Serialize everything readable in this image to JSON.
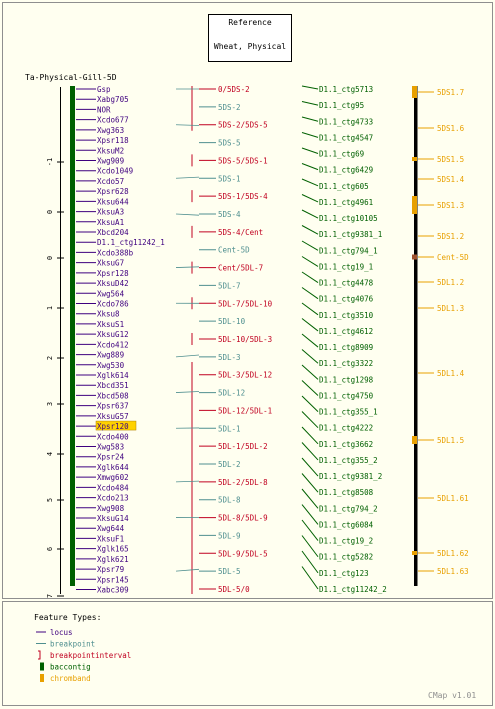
{
  "header": {
    "line1": "Reference",
    "line2": "Wheat, Physical"
  },
  "map_title": "Ta-Physical-Gill-5D",
  "colors": {
    "background": "#FFFFF0",
    "frame": "#8F8F8F",
    "locus": "#3F007F",
    "breakpoint": "#4F8F8F",
    "interval": "#C00020",
    "baccontig": "#006000",
    "chromband": "#E8A000",
    "black": "#000000",
    "highlight_bg": "#FFD200"
  },
  "axis_ticks": [
    "-1",
    "0",
    "0",
    "1",
    "2",
    "3",
    "4",
    "5",
    "6",
    "7"
  ],
  "loci": [
    {
      "label": "Gsp",
      "hl": false
    },
    {
      "label": "Xabg705",
      "hl": false
    },
    {
      "label": "NOR",
      "hl": false
    },
    {
      "label": "Xcdo677",
      "hl": false
    },
    {
      "label": "Xwg363",
      "hl": false
    },
    {
      "label": "Xpsr118",
      "hl": false
    },
    {
      "label": "XksuM2",
      "hl": false
    },
    {
      "label": "Xwg909",
      "hl": false
    },
    {
      "label": "Xcdo1049",
      "hl": false
    },
    {
      "label": "Xcdo57",
      "hl": false
    },
    {
      "label": "Xpsr628",
      "hl": false
    },
    {
      "label": "Xksu644",
      "hl": false
    },
    {
      "label": "XksuA3",
      "hl": false
    },
    {
      "label": "XksuA1",
      "hl": false
    },
    {
      "label": "Xbcd204",
      "hl": false
    },
    {
      "label": "D1.1_ctg11242_1",
      "hl": false
    },
    {
      "label": "Xcdo388b",
      "hl": false
    },
    {
      "label": "XksuG7",
      "hl": false
    },
    {
      "label": "Xpsr128",
      "hl": false
    },
    {
      "label": "XksuD42",
      "hl": false
    },
    {
      "label": "Xwg564",
      "hl": false
    },
    {
      "label": "Xcdo786",
      "hl": false
    },
    {
      "label": "Xksu8",
      "hl": false
    },
    {
      "label": "XksuS1",
      "hl": false
    },
    {
      "label": "XksuG12",
      "hl": false
    },
    {
      "label": "Xcdo412",
      "hl": false
    },
    {
      "label": "Xwg889",
      "hl": false
    },
    {
      "label": "Xwg530",
      "hl": false
    },
    {
      "label": "Xglk614",
      "hl": false
    },
    {
      "label": "Xbcd351",
      "hl": false
    },
    {
      "label": "Xbcd508",
      "hl": false
    },
    {
      "label": "Xpsr637",
      "hl": false
    },
    {
      "label": "XksuG57",
      "hl": false
    },
    {
      "label": "Xpsr120",
      "hl": true
    },
    {
      "label": "Xcdo400",
      "hl": false
    },
    {
      "label": "Xwg583",
      "hl": false
    },
    {
      "label": "Xpsr24",
      "hl": false
    },
    {
      "label": "Xglk644",
      "hl": false
    },
    {
      "label": "Xmwg602",
      "hl": false
    },
    {
      "label": "Xcdo484",
      "hl": false
    },
    {
      "label": "Xcdo213",
      "hl": false
    },
    {
      "label": "Xwg908",
      "hl": false
    },
    {
      "label": "XksuG14",
      "hl": false
    },
    {
      "label": "Xwg644",
      "hl": false
    },
    {
      "label": "XksuF1",
      "hl": false
    },
    {
      "label": "Xglk165",
      "hl": false
    },
    {
      "label": "Xglk621",
      "hl": false
    },
    {
      "label": "Xpsr79",
      "hl": false
    },
    {
      "label": "Xpsr145",
      "hl": false
    },
    {
      "label": "Xabc309",
      "hl": false
    }
  ],
  "intervals": [
    {
      "label": "0/5DS-2",
      "kind": "interval"
    },
    {
      "label": "5DS-2",
      "kind": "breakpoint"
    },
    {
      "label": "5DS-2/5DS-5",
      "kind": "interval"
    },
    {
      "label": "5DS-5",
      "kind": "breakpoint"
    },
    {
      "label": "5DS-5/5DS-1",
      "kind": "interval"
    },
    {
      "label": "5DS-1",
      "kind": "breakpoint"
    },
    {
      "label": "5DS-1/5DS-4",
      "kind": "interval"
    },
    {
      "label": "5DS-4",
      "kind": "breakpoint"
    },
    {
      "label": "5DS-4/Cent",
      "kind": "interval"
    },
    {
      "label": "Cent-5D",
      "kind": "breakpoint"
    },
    {
      "label": "Cent/5DL-7",
      "kind": "interval"
    },
    {
      "label": "5DL-7",
      "kind": "breakpoint"
    },
    {
      "label": "5DL-7/5DL-10",
      "kind": "interval"
    },
    {
      "label": "5DL-10",
      "kind": "breakpoint"
    },
    {
      "label": "5DL-10/5DL-3",
      "kind": "interval"
    },
    {
      "label": "5DL-3",
      "kind": "breakpoint"
    },
    {
      "label": "5DL-3/5DL-12",
      "kind": "interval"
    },
    {
      "label": "5DL-12",
      "kind": "breakpoint"
    },
    {
      "label": "5DL-12/5DL-1",
      "kind": "interval"
    },
    {
      "label": "5DL-1",
      "kind": "breakpoint"
    },
    {
      "label": "5DL-1/5DL-2",
      "kind": "interval"
    },
    {
      "label": "5DL-2",
      "kind": "breakpoint"
    },
    {
      "label": "5DL-2/5DL-8",
      "kind": "interval"
    },
    {
      "label": "5DL-8",
      "kind": "breakpoint"
    },
    {
      "label": "5DL-8/5DL-9",
      "kind": "interval"
    },
    {
      "label": "5DL-9",
      "kind": "breakpoint"
    },
    {
      "label": "5DL-9/5DL-5",
      "kind": "interval"
    },
    {
      "label": "5DL-5",
      "kind": "breakpoint"
    },
    {
      "label": "5DL-5/0",
      "kind": "interval"
    }
  ],
  "contigs": [
    "D1.1_ctg5713",
    "D1.1_ctg95",
    "D1.1_ctg4733",
    "D1.1_ctg4547",
    "D1.1_ctg69",
    "D1.1_ctg6429",
    "D1.1_ctg605",
    "D1.1_ctg4961",
    "D1.1_ctg10105",
    "D1.1_ctg9381_1",
    "D1.1_ctg794_1",
    "D1.1_ctg19_1",
    "D1.1_ctg4478",
    "D1.1_ctg4076",
    "D1.1_ctg3510",
    "D1.1_ctg4612",
    "D1.1_ctg8909",
    "D1.1_ctg3322",
    "D1.1_ctg1298",
    "D1.1_ctg4750",
    "D1.1_ctg355_1",
    "D1.1_ctg4222",
    "D1.1_ctg3662",
    "D1.1_ctg355_2",
    "D1.1_ctg9381_2",
    "D1.1_ctg8508",
    "D1.1_ctg794_2",
    "D1.1_ctg6084",
    "D1.1_ctg19_2",
    "D1.1_ctg5282",
    "D1.1_ctg123",
    "D1.1_ctg11242_2"
  ],
  "bands": [
    {
      "label": "5DS1.7"
    },
    {
      "label": "5DS1.6"
    },
    {
      "label": "5DS1.5"
    },
    {
      "label": "5DS1.4"
    },
    {
      "label": "5DS1.3"
    },
    {
      "label": "5DS1.2"
    },
    {
      "label": "Cent-5D"
    },
    {
      "label": "5DL1.2"
    },
    {
      "label": "5DL1.3"
    },
    {
      "label": "5DL1.4"
    },
    {
      "label": "5DL1.5"
    },
    {
      "label": "5DL1.61"
    },
    {
      "label": "5DL1.62"
    },
    {
      "label": "5DL1.63"
    }
  ],
  "legend": {
    "title": "Feature Types:",
    "items": [
      {
        "label": "locus",
        "kind": "locus"
      },
      {
        "label": "breakpoint",
        "kind": "breakpoint"
      },
      {
        "label": "breakpointinterval",
        "kind": "interval"
      },
      {
        "label": "baccontig",
        "kind": "baccontig"
      },
      {
        "label": "chromband",
        "kind": "chromband"
      }
    ]
  },
  "footer": "CMap v1.01"
}
